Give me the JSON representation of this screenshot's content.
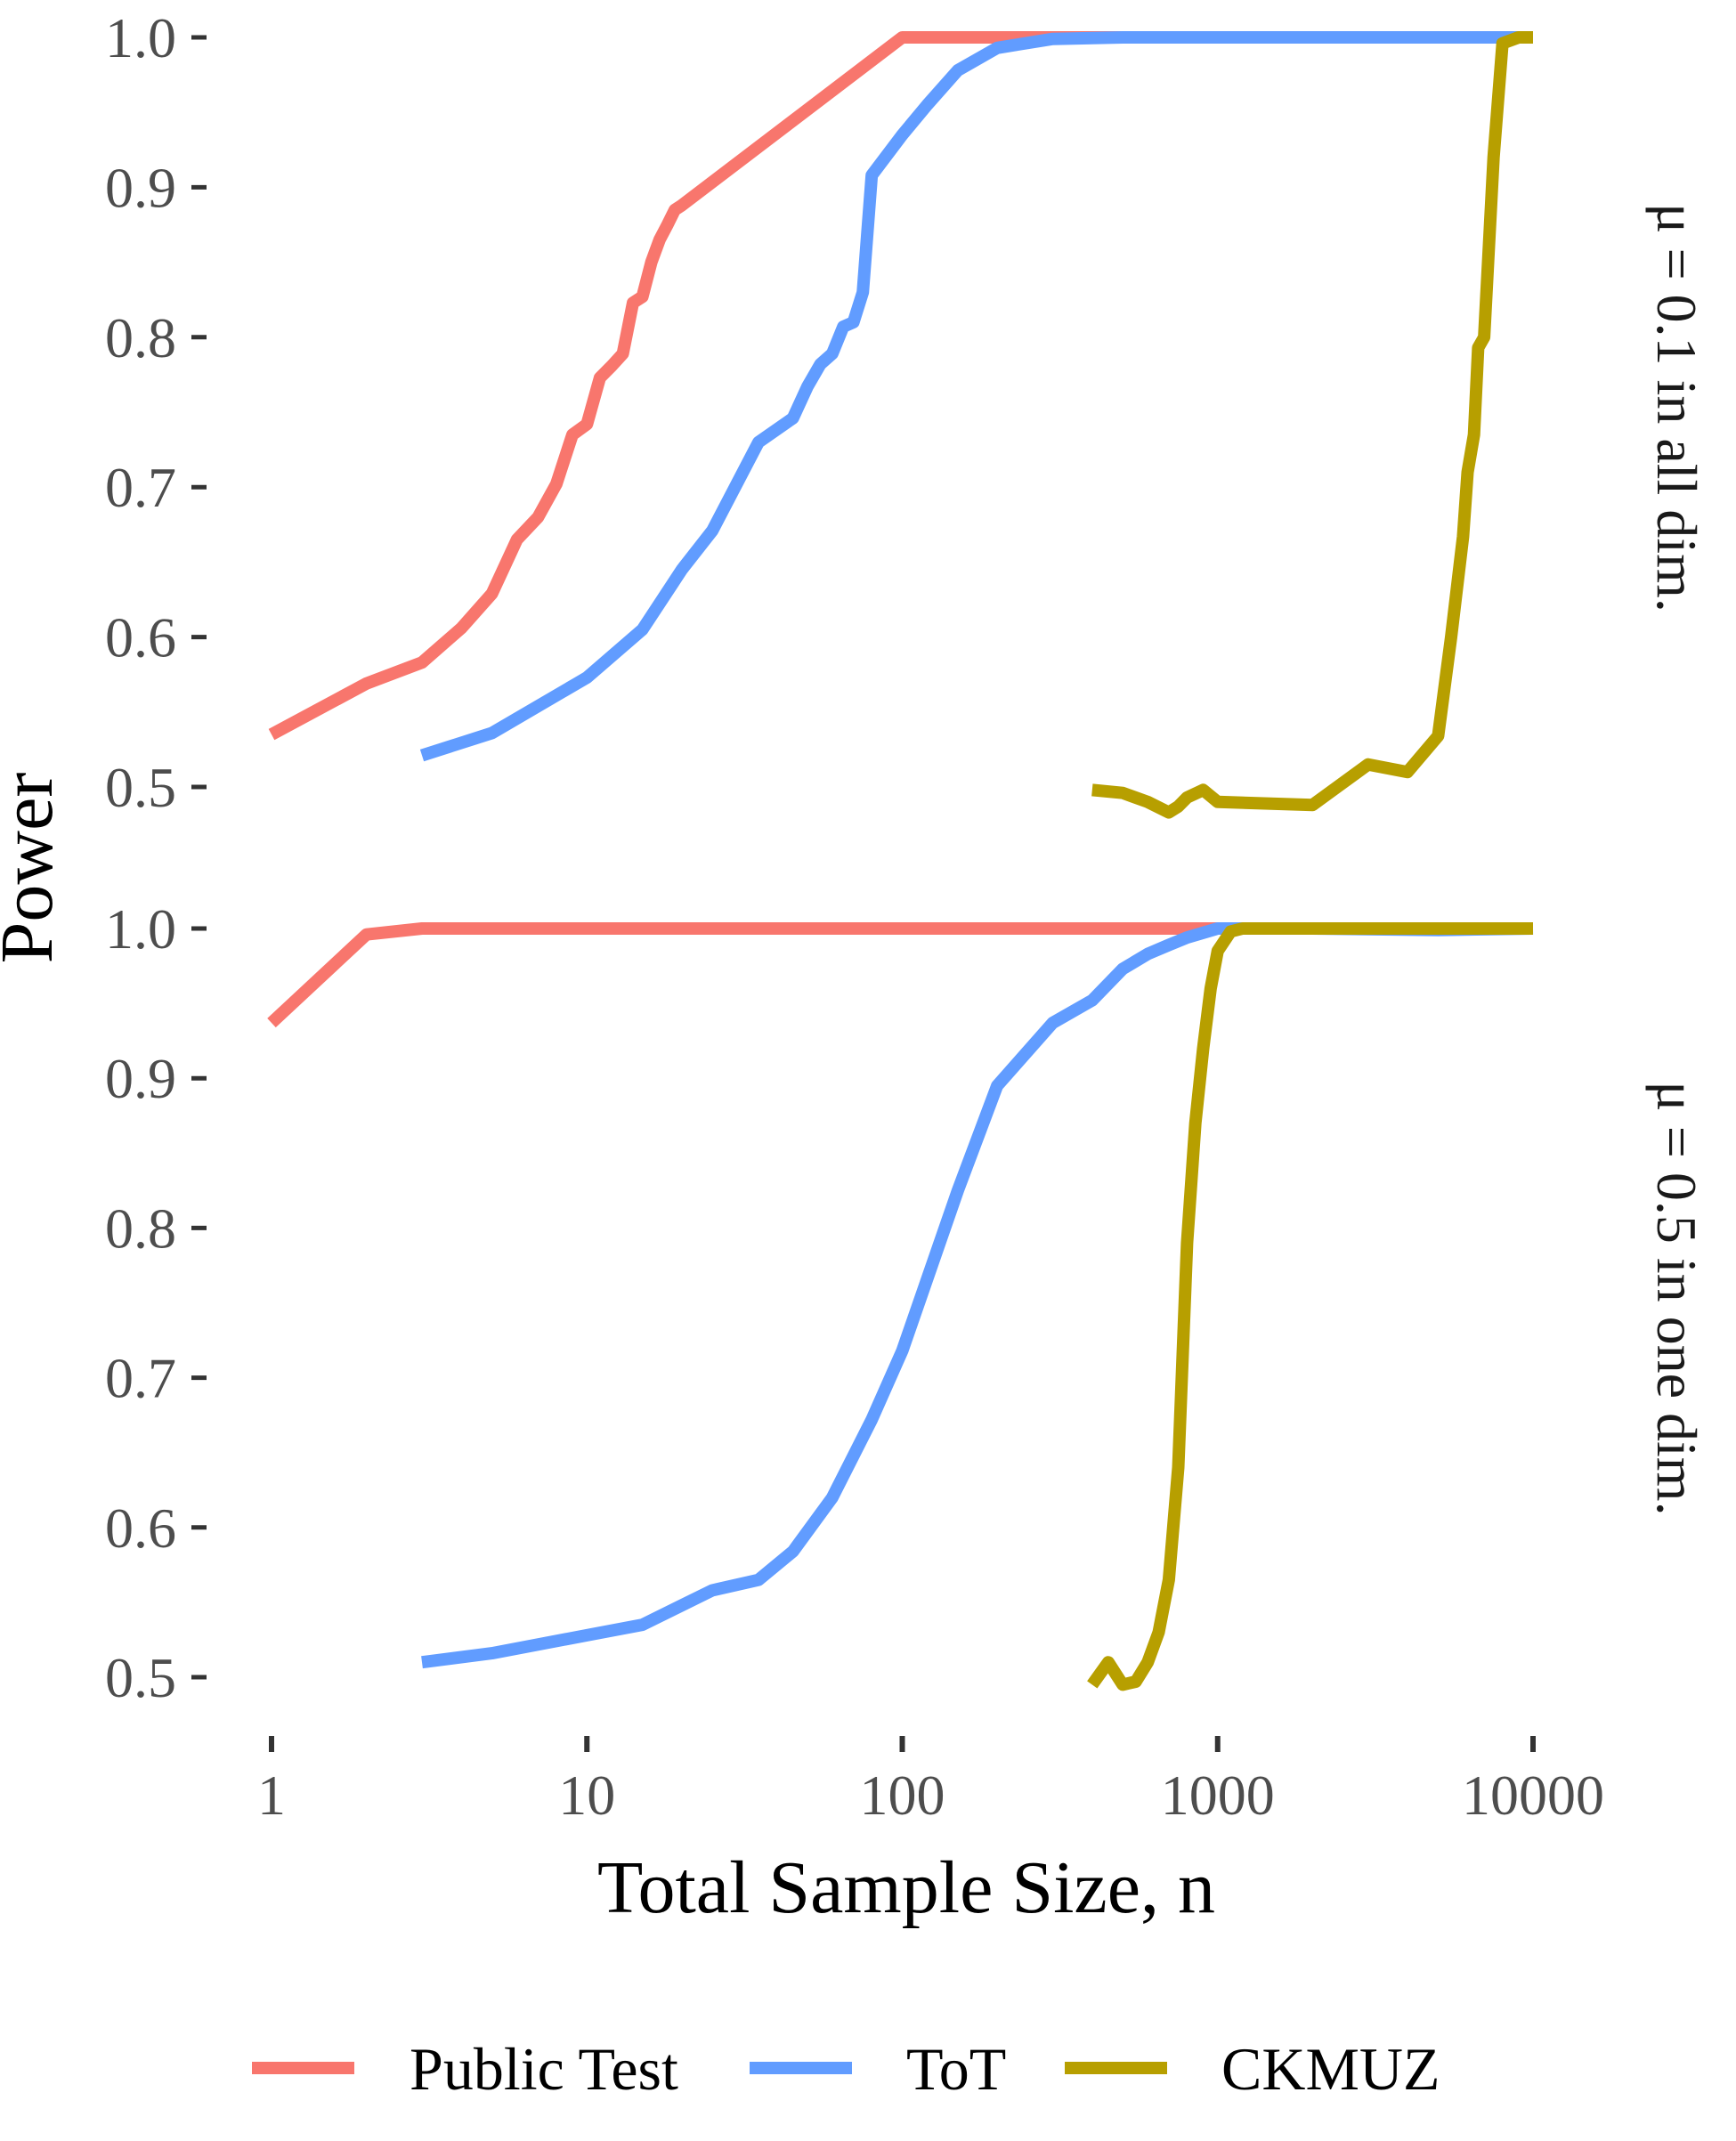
{
  "chart_data": {
    "type": "line",
    "xlabel": "Total Sample Size, n",
    "ylabel": "Power",
    "x_scale": "log10",
    "x_ticks": [
      1,
      10,
      100,
      1000,
      10000
    ],
    "x_tick_labels": [
      "1",
      "10",
      "100",
      "1000",
      "10000"
    ],
    "y_ticks": [
      0.5,
      0.6,
      0.7,
      0.8,
      0.9,
      1.0
    ],
    "y_tick_labels": [
      "0.5",
      "0.6",
      "0.7",
      "0.8",
      "0.9",
      "1.0"
    ],
    "grid": false,
    "legend_position": "bottom",
    "legend": [
      "Public Test",
      "ToT",
      "CKMUZ"
    ],
    "colors": {
      "Public Test": "#F8766D",
      "ToT": "#619CFF",
      "CKMUZ": "#B79F00"
    },
    "panels": [
      {
        "strip_label": "μ = 0.1 in all dim.",
        "ylim": [
          0.48,
          1.0
        ],
        "series": [
          {
            "name": "Public Test",
            "x": [
              1,
              2,
              3,
              4,
              5,
              6,
              7,
              8,
              9,
              10,
              11,
              12,
              13,
              14,
              15,
              16,
              17,
              18,
              19,
              20,
              100,
              200,
              500,
              1000,
              10000
            ],
            "y": [
              0.535,
              0.569,
              0.583,
              0.606,
              0.629,
              0.665,
              0.68,
              0.702,
              0.735,
              0.742,
              0.773,
              0.781,
              0.789,
              0.823,
              0.827,
              0.85,
              0.865,
              0.875,
              0.885,
              0.888,
              1.0,
              1.0,
              1.0,
              1.0,
              1.0
            ]
          },
          {
            "name": "ToT",
            "x": [
              3,
              5,
              10,
              15,
              20,
              25,
              30,
              35,
              45,
              50,
              55,
              60,
              65,
              70,
              75,
              80,
              100,
              120,
              150,
              200,
              300,
              500,
              1000,
              2000,
              5000,
              10000
            ],
            "y": [
              0.521,
              0.536,
              0.573,
              0.605,
              0.645,
              0.671,
              0.703,
              0.73,
              0.746,
              0.767,
              0.782,
              0.789,
              0.807,
              0.81,
              0.83,
              0.908,
              0.935,
              0.955,
              0.978,
              0.993,
              0.999,
              1.0,
              1.0,
              1.0,
              1.0,
              1.0
            ]
          },
          {
            "name": "CKMUZ",
            "x": [
              400,
              500,
              600,
              700,
              750,
              800,
              900,
              1000,
              2000,
              3000,
              4000,
              5000,
              5500,
              6000,
              6200,
              6500,
              6700,
              7000,
              7500,
              8000,
              9000,
              10000
            ],
            "y": [
              0.498,
              0.496,
              0.49,
              0.483,
              0.487,
              0.493,
              0.498,
              0.49,
              0.488,
              0.515,
              0.51,
              0.534,
              0.6,
              0.667,
              0.71,
              0.735,
              0.793,
              0.8,
              0.92,
              0.996,
              1.0,
              1.0
            ]
          }
        ]
      },
      {
        "strip_label": "μ = 0.5 in one dim.",
        "ylim": [
          0.475,
          1.0
        ],
        "series": [
          {
            "name": "Public Test",
            "x": [
              1,
              2,
              3,
              5,
              10,
              100,
              1000,
              10000
            ],
            "y": [
              0.937,
              0.996,
              1.0,
              1.0,
              1.0,
              1.0,
              1.0,
              1.0
            ]
          },
          {
            "name": "ToT",
            "x": [
              3,
              5,
              10,
              15,
              25,
              35,
              45,
              60,
              80,
              100,
              150,
              200,
              300,
              400,
              500,
              600,
              700,
              800,
              1000,
              2000,
              5000,
              10000
            ],
            "y": [
              0.51,
              0.516,
              0.528,
              0.535,
              0.558,
              0.565,
              0.584,
              0.62,
              0.672,
              0.718,
              0.825,
              0.895,
              0.937,
              0.952,
              0.973,
              0.983,
              0.989,
              0.994,
              1.0,
              1.0,
              0.999,
              1.0
            ]
          },
          {
            "name": "CKMUZ",
            "x": [
              400,
              450,
              500,
              550,
              600,
              650,
              700,
              750,
              800,
              850,
              900,
              950,
              1000,
              1100,
              1200,
              1500,
              2000,
              5000,
              10000
            ],
            "y": [
              0.495,
              0.51,
              0.495,
              0.497,
              0.51,
              0.53,
              0.565,
              0.64,
              0.79,
              0.87,
              0.92,
              0.96,
              0.985,
              0.998,
              1.0,
              1.0,
              1.0,
              1.0,
              1.0
            ]
          }
        ]
      }
    ]
  }
}
